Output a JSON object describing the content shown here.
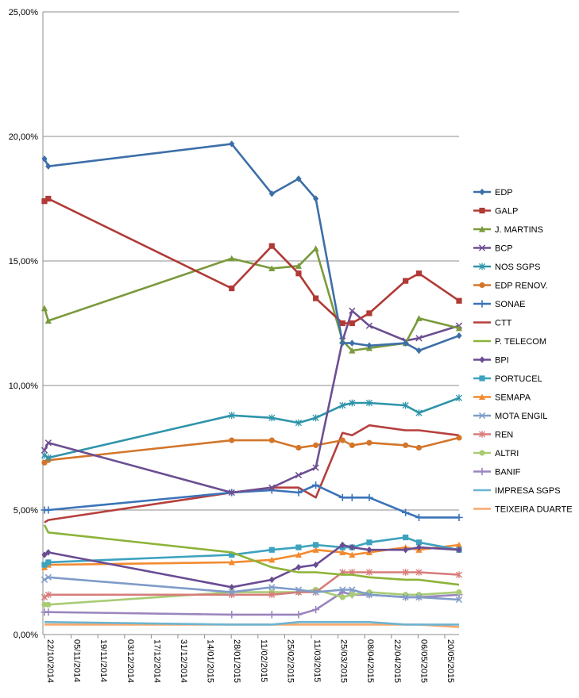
{
  "chart_data": {
    "type": "line",
    "ylim": [
      0,
      25
    ],
    "y_ticks": [
      "0,00%",
      "5,00%",
      "10,00%",
      "15,00%",
      "20,00%",
      "25,00%"
    ],
    "x_ticks": [
      "22/10/2014",
      "05/11/2014",
      "19/11/2014",
      "03/12/2014",
      "17/12/2014",
      "31/12/2014",
      "14/01/2015",
      "28/01/2015",
      "11/02/2015",
      "25/02/2015",
      "11/03/2015",
      "25/03/2015",
      "08/04/2015",
      "22/04/2015",
      "06/05/2015",
      "20/05/2015"
    ],
    "x": [
      "2014-10-22",
      "2014-10-24",
      "2015-01-28",
      "2015-02-18",
      "2015-03-04",
      "2015-03-13",
      "2015-03-27",
      "2015-04-01",
      "2015-04-10",
      "2015-04-29",
      "2015-05-06",
      "2015-05-27"
    ],
    "grid": "horizontal",
    "legend_position": "right",
    "series": [
      {
        "name": "EDP",
        "color": "#3D6FA8",
        "marker": "diamond",
        "values": [
          19.1,
          18.8,
          19.7,
          17.7,
          18.3,
          17.5,
          11.7,
          11.7,
          11.6,
          11.7,
          11.4,
          12.0
        ]
      },
      {
        "name": "GALP",
        "color": "#B03A36",
        "marker": "square",
        "values": [
          17.4,
          17.5,
          13.9,
          15.6,
          14.5,
          13.5,
          12.5,
          12.5,
          12.9,
          14.2,
          14.5,
          13.4
        ]
      },
      {
        "name": "J. MARTINS",
        "color": "#7A9A3C",
        "marker": "triangle",
        "values": [
          13.1,
          12.6,
          15.1,
          14.7,
          14.8,
          15.5,
          11.8,
          11.4,
          11.5,
          11.7,
          12.7,
          12.3
        ]
      },
      {
        "name": "BCP",
        "color": "#6C4F91",
        "marker": "x",
        "values": [
          7.4,
          7.7,
          5.7,
          5.9,
          6.4,
          6.7,
          11.8,
          13.0,
          12.4,
          11.8,
          11.9,
          12.4
        ]
      },
      {
        "name": "NOS SGPS",
        "color": "#2E94AA",
        "marker": "star",
        "values": [
          7.2,
          7.1,
          8.8,
          8.7,
          8.5,
          8.7,
          9.2,
          9.3,
          9.3,
          9.2,
          8.9,
          9.5
        ]
      },
      {
        "name": "EDP RENOV.",
        "color": "#D3762B",
        "marker": "circle",
        "values": [
          6.9,
          7.0,
          7.8,
          7.8,
          7.5,
          7.6,
          7.8,
          7.6,
          7.7,
          7.6,
          7.5,
          7.9
        ]
      },
      {
        "name": "SONAE",
        "color": "#3B73B9",
        "marker": "plus",
        "values": [
          5.0,
          5.0,
          5.7,
          5.8,
          5.7,
          6.0,
          5.5,
          5.5,
          5.5,
          4.9,
          4.7,
          4.7
        ]
      },
      {
        "name": "CTT",
        "color": "#B5403E",
        "marker": "none",
        "values": [
          4.5,
          4.6,
          5.7,
          5.9,
          5.9,
          5.5,
          8.1,
          8.0,
          8.4,
          8.2,
          8.2,
          8.0
        ]
      },
      {
        "name": "P. TELECOM",
        "color": "#8DB339",
        "marker": "none",
        "values": [
          4.4,
          4.1,
          3.3,
          2.7,
          2.5,
          2.5,
          2.4,
          2.4,
          2.3,
          2.2,
          2.2,
          2.0
        ]
      },
      {
        "name": "BPI",
        "color": "#6A4C93",
        "marker": "diamond",
        "values": [
          3.2,
          3.3,
          1.9,
          2.2,
          2.7,
          2.8,
          3.6,
          3.5,
          3.4,
          3.4,
          3.5,
          3.4
        ]
      },
      {
        "name": "PORTUCEL",
        "color": "#3DA2BE",
        "marker": "square",
        "values": [
          2.8,
          2.9,
          3.2,
          3.4,
          3.5,
          3.6,
          3.5,
          3.5,
          3.7,
          3.9,
          3.7,
          3.4
        ]
      },
      {
        "name": "SEMAPA",
        "color": "#F28B30",
        "marker": "triangle",
        "values": [
          2.7,
          2.8,
          2.9,
          3.0,
          3.2,
          3.4,
          3.3,
          3.2,
          3.3,
          3.5,
          3.4,
          3.6
        ]
      },
      {
        "name": "MOTA ENGIL",
        "color": "#7F9CC9",
        "marker": "x",
        "values": [
          2.2,
          2.3,
          1.7,
          1.9,
          1.8,
          1.7,
          1.8,
          1.8,
          1.6,
          1.5,
          1.5,
          1.4
        ]
      },
      {
        "name": "REN",
        "color": "#D77C7A",
        "marker": "star",
        "values": [
          1.5,
          1.6,
          1.6,
          1.6,
          1.7,
          1.7,
          2.5,
          2.5,
          2.5,
          2.5,
          2.5,
          2.4
        ]
      },
      {
        "name": "ALTRI",
        "color": "#A8CC74",
        "marker": "circle",
        "values": [
          1.2,
          1.2,
          1.7,
          1.7,
          1.7,
          1.8,
          1.5,
          1.6,
          1.7,
          1.6,
          1.6,
          1.7
        ]
      },
      {
        "name": "BANIF",
        "color": "#9A85BE",
        "marker": "plus",
        "values": [
          0.9,
          0.9,
          0.8,
          0.8,
          0.8,
          1.0,
          1.7,
          1.6,
          1.6,
          1.5,
          1.5,
          1.6
        ]
      },
      {
        "name": "IMPRESA SGPS",
        "color": "#6CB4D1",
        "marker": "none",
        "values": [
          0.5,
          0.5,
          0.4,
          0.4,
          0.5,
          0.5,
          0.5,
          0.5,
          0.5,
          0.4,
          0.4,
          0.4
        ]
      },
      {
        "name": "TEIXEIRA DUARTE",
        "color": "#F9A86C",
        "marker": "none",
        "values": [
          0.4,
          0.4,
          0.4,
          0.4,
          0.4,
          0.4,
          0.4,
          0.4,
          0.4,
          0.4,
          0.4,
          0.3
        ]
      }
    ]
  }
}
